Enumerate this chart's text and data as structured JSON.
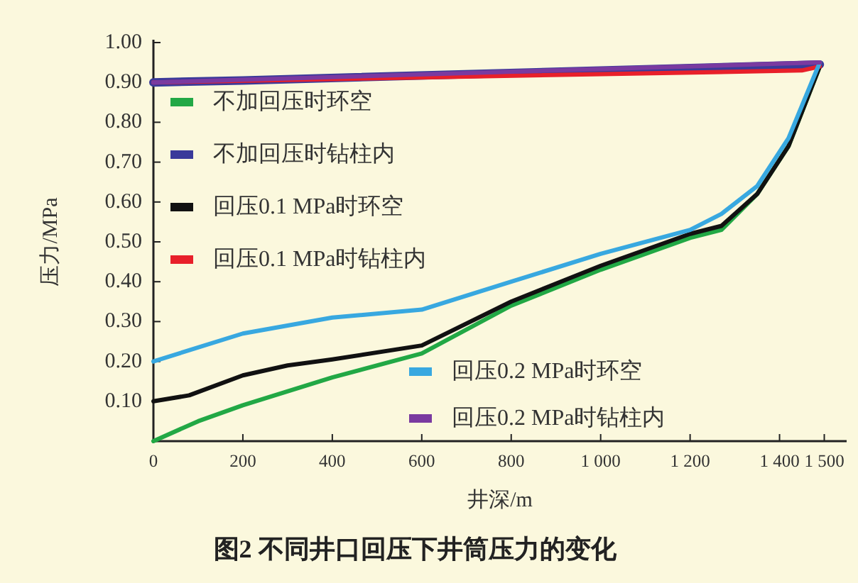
{
  "chart_data": {
    "type": "line",
    "title": "图2   不同井口回压下井筒压力的变化",
    "xlabel": "井深/m",
    "ylabel": "压力/MPa",
    "xlim": [
      0,
      1550
    ],
    "xticks": [
      0,
      200,
      400,
      600,
      800,
      {
        "value": 1000,
        "label": "1 000"
      },
      {
        "value": 1200,
        "label": "1 200"
      },
      {
        "value": 1400,
        "label": "1 400"
      },
      {
        "value": 1500,
        "label": "1 500"
      }
    ],
    "ylim": [
      0,
      1.0
    ],
    "yticks": [
      {
        "value": 0.1,
        "label": "0.10"
      },
      {
        "value": 0.2,
        "label": "0.20"
      },
      {
        "value": 0.3,
        "label": "0.30"
      },
      {
        "value": 0.4,
        "label": "0.40"
      },
      {
        "value": 0.5,
        "label": "0.50"
      },
      {
        "value": 0.6,
        "label": "0.60"
      },
      {
        "value": 0.7,
        "label": "0.70"
      },
      {
        "value": 0.8,
        "label": "0.80"
      },
      {
        "value": 0.9,
        "label": "0.90"
      },
      {
        "value": 1.0,
        "label": "1.00"
      }
    ],
    "grid": false,
    "legend": "left",
    "line_style": "solid",
    "marker": "none",
    "series": [
      {
        "name": "不加回压时环空",
        "color": "#22a845",
        "x": [
          0,
          100,
          200,
          400,
          600,
          800,
          1000,
          1200,
          1270,
          1350,
          1420,
          1490
        ],
        "values": [
          0.0,
          0.05,
          0.09,
          0.16,
          0.22,
          0.34,
          0.43,
          0.51,
          0.53,
          0.62,
          0.74,
          0.94
        ]
      },
      {
        "name": "不加回压时钻柱内",
        "color": "#3a3a9a",
        "x": [
          0,
          200,
          1490
        ],
        "values": [
          0.9,
          0.905,
          0.945
        ]
      },
      {
        "name": "回压0.1 MPa时环空",
        "color": "#111111",
        "x": [
          0,
          80,
          200,
          300,
          400,
          600,
          800,
          1000,
          1200,
          1270,
          1350,
          1420,
          1490
        ],
        "values": [
          0.1,
          0.115,
          0.165,
          0.19,
          0.205,
          0.24,
          0.35,
          0.44,
          0.52,
          0.54,
          0.62,
          0.74,
          0.94
        ]
      },
      {
        "name": "回压0.1 MPa时钻柱内",
        "color": "#e8202a",
        "x": [
          0,
          1450,
          1490
        ],
        "values": [
          0.9,
          0.93,
          0.94
        ]
      },
      {
        "name": "回压0.2 MPa时环空",
        "color": "#38a8e0",
        "x": [
          0,
          200,
          400,
          600,
          800,
          1000,
          1200,
          1270,
          1350,
          1420,
          1490
        ],
        "values": [
          0.2,
          0.27,
          0.31,
          0.33,
          0.4,
          0.47,
          0.53,
          0.57,
          0.64,
          0.76,
          0.95
        ]
      },
      {
        "name": "回压0.2 MPa时钻柱内",
        "color": "#7a3aa0",
        "x": [
          0,
          1490
        ],
        "values": [
          0.9,
          0.95
        ]
      }
    ]
  }
}
